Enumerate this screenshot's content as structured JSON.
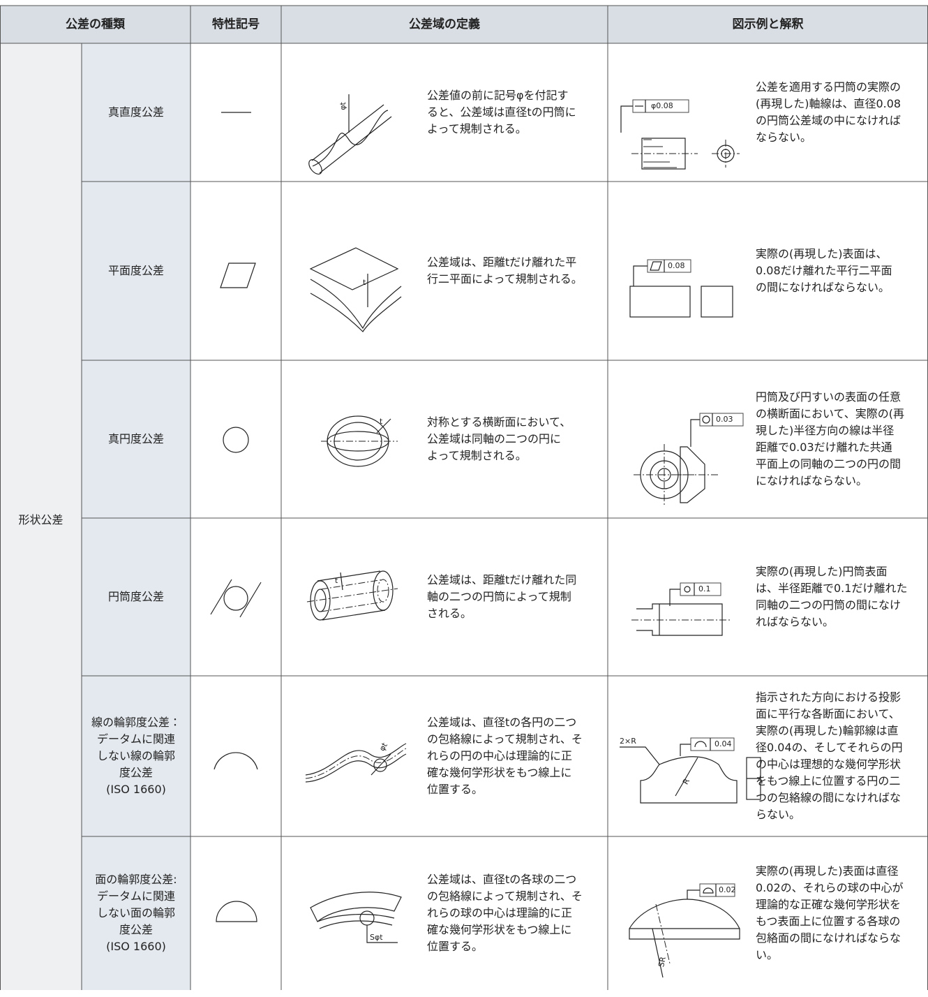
{
  "header": [
    "公差の種類",
    "特性記号",
    "公差域の定義",
    "図示例と解釈"
  ],
  "group": "形状公差",
  "rows": [
    {
      "name": "真直度公差",
      "definition": "公差値の前に記号φを付記す\nると、公差域は直径tの円筒に\nよって規制される。",
      "interpretation": "公差を適用する円筒の実際の\n(再現した)軸線は、直径0.08\nの円筒公差域の中になければ\nならない。",
      "definition_labels": [
        "φt"
      ],
      "example_labels": [
        "φ0.08"
      ]
    },
    {
      "name": "平面度公差",
      "definition": "公差域は、距離tだけ離れた平\n行二平面によって規制される。",
      "interpretation": "実際の(再現した)表面は、\n0.08だけ離れた平行二平面\nの間になければならない。",
      "definition_labels": [
        "t"
      ],
      "example_labels": [
        "0.08"
      ]
    },
    {
      "name": "真円度公差",
      "definition": "対称とする横断面において、\n公差域は同軸の二つの円に\nよって規制される。",
      "interpretation": "円筒及び円すいの表面の任意\nの横断面において、実際の(再\n現した)半径方向の線は半径\n距離で0.03だけ離れた共通\n平面上の同軸の二つの円の間\nになければならない。",
      "definition_labels": [
        "t"
      ],
      "example_labels": [
        "0.03"
      ]
    },
    {
      "name": "円筒度公差",
      "definition": "公差域は、距離tだけ離れた同\n軸の二つの円筒によって規制\nされる。",
      "interpretation": "実際の(再現した)円筒表面\nは、半径距離で0.1だけ離れた\n同軸の二つの円筒の間になけ\nればならない。",
      "definition_labels": [
        "t"
      ],
      "example_labels": [
        "0.1"
      ]
    },
    {
      "name": "線の輪郭度公差：\nデータムに関連\nしない線の輪郭\n度公差\n(ISO 1660)",
      "definition": "公差域は、直径tの各円の二つ\nの包絡線によって規制され、そ\nれらの円の中心は理論的に正\n確な幾何学形状をもつ線上に\n位置する。",
      "interpretation": "指示された方向における投影\n面に平行な各断面において、\n実際の(再現した)輪郭線は直\n径0.04の、そしてそれらの円\nの中心は理想的な幾何学形状\nをもつ線上に位置する円の二\nつの包絡線の間になければな\nらない。",
      "definition_labels": [
        "φt"
      ],
      "example_labels": [
        "2×R",
        "0.04",
        "R"
      ]
    },
    {
      "name": "面の輪郭度公差:\nデータムに関連\nしない面の輪郭\n度公差\n(ISO 1660)",
      "definition": "公差域は、直径tの各球の二つ\nの包絡線によって規制され、そ\nれらの球の中心は理論的に正\n確な幾何学形状をもつ線上に\n位置する。",
      "interpretation": "実際の(再現した)表面は直径\n0.02の、それらの球の中心が\n理論的な正確な幾何学形状を\nもつ表面上に位置する各球の\n包絡面の間になければならな\nい。",
      "definition_labels": [
        "Sφt"
      ],
      "example_labels": [
        "0.02",
        "SR"
      ]
    }
  ]
}
